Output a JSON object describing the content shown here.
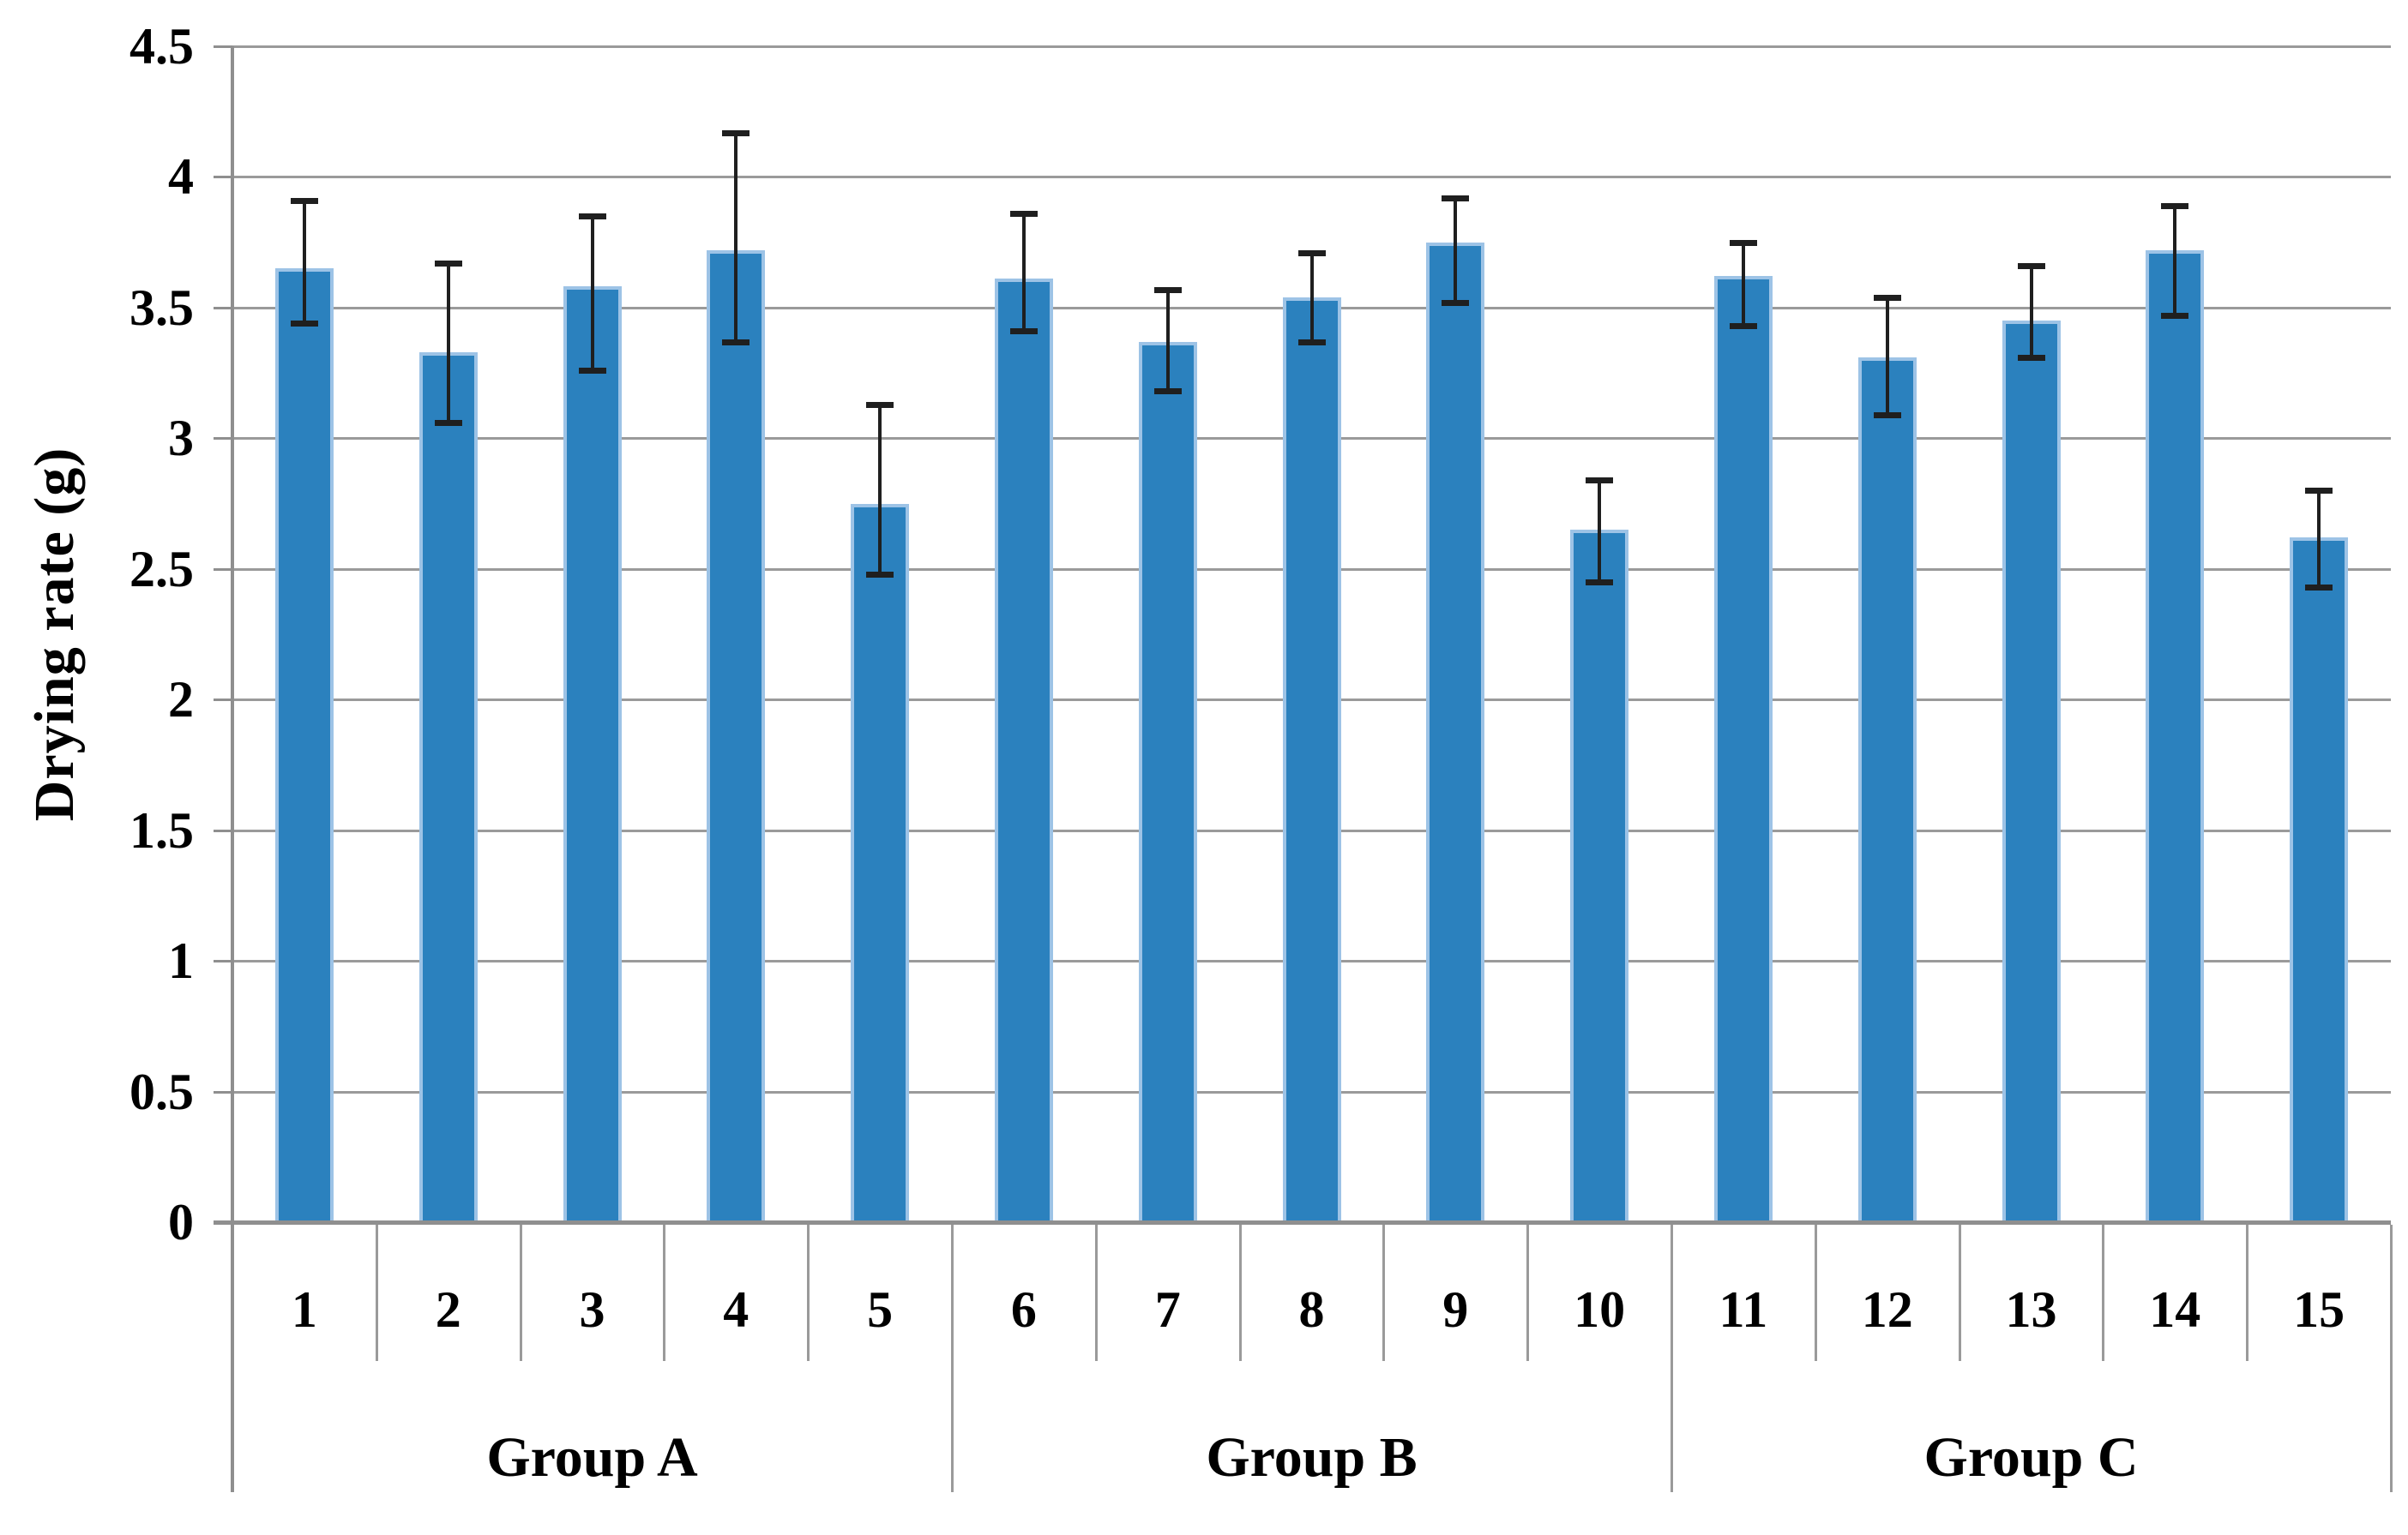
{
  "chart_data": {
    "type": "bar",
    "title": "",
    "xlabel": "",
    "ylabel": "Drying rate (g)",
    "ylim": [
      0,
      4.5
    ],
    "ytick_step": 0.5,
    "yticks": [
      0,
      0.5,
      1,
      1.5,
      2,
      2.5,
      3,
      3.5,
      4,
      4.5
    ],
    "ytick_labels": [
      "0",
      "0.5",
      "1",
      "1.5",
      "2",
      "2.5",
      "3",
      "3.5",
      "4",
      "4.5"
    ],
    "grid": "horizontal",
    "legend": "none",
    "categories": [
      "1",
      "2",
      "3",
      "4",
      "5",
      "6",
      "7",
      "8",
      "9",
      "10",
      "11",
      "12",
      "13",
      "14",
      "15"
    ],
    "series": [
      {
        "name": "Drying rate",
        "values": [
          3.65,
          3.33,
          3.58,
          3.72,
          2.75,
          3.61,
          3.37,
          3.54,
          3.75,
          2.65,
          3.62,
          3.31,
          3.45,
          3.72,
          2.62
        ],
        "error_whisker_top": [
          3.91,
          3.67,
          3.85,
          4.17,
          3.13,
          3.86,
          3.57,
          3.71,
          3.92,
          2.84,
          3.75,
          3.54,
          3.66,
          3.89,
          2.8
        ],
        "error_whisker_bottom": [
          3.44,
          3.06,
          3.26,
          3.37,
          2.48,
          3.41,
          3.18,
          3.37,
          3.52,
          2.45,
          3.43,
          3.09,
          3.31,
          3.47,
          2.43
        ]
      }
    ],
    "groups": [
      {
        "label": "Group A",
        "first_category": "1",
        "last_category": "5"
      },
      {
        "label": "Group B",
        "first_category": "6",
        "last_category": "10"
      },
      {
        "label": "Group C",
        "first_category": "11",
        "last_category": "15"
      }
    ],
    "colors": {
      "bar_fill": "#2b81be",
      "bar_edge": "#9dc3e6",
      "gridline": "#9a9a9a",
      "axis": "#8f8f8f",
      "error_bar": "#1f1f1f",
      "text": "#000000",
      "background": "#ffffff"
    }
  }
}
